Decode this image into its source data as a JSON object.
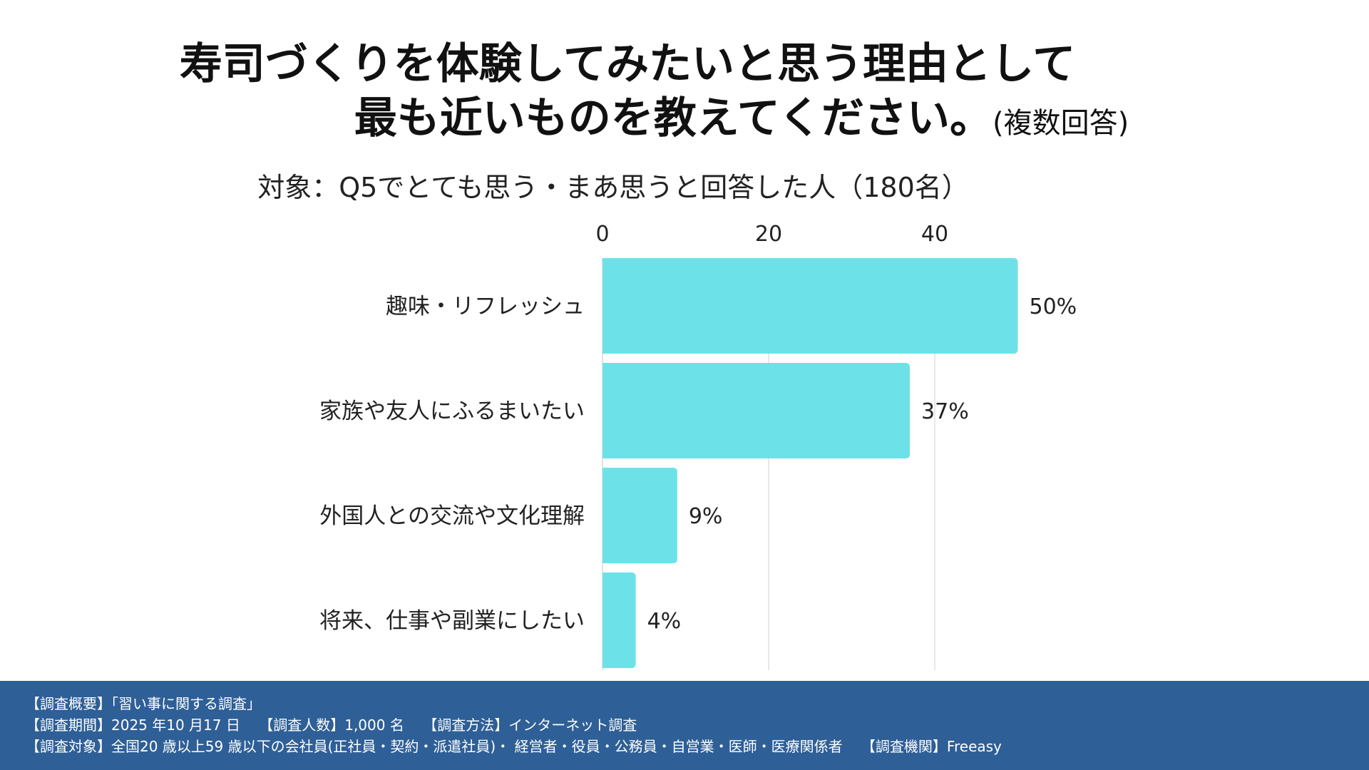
{
  "title": {
    "line1": "寿司づくりを体験してみたいと思う理由として",
    "line2": "最も近いものを教えてください。",
    "note": "(複数回答)"
  },
  "subtitle": "対象：Q5でとても思う・まあ思うと回答した人（180名）",
  "chart_data": {
    "type": "bar",
    "orientation": "horizontal",
    "title": "寿司づくりを体験してみたいと思う理由として最も近いものを教えてください。(複数回答)",
    "subtitle": "対象：Q5でとても思う・まあ思うと回答した人（180名）",
    "categories": [
      "趣味・リフレッシュ",
      "家族や友人にふるまいたい",
      "外国人との交流や文化理解",
      "将来、仕事や副業にしたい"
    ],
    "values": [
      50,
      37,
      9,
      4
    ],
    "value_labels": [
      "50%",
      "37%",
      "9%",
      "4%"
    ],
    "x_ticks": [
      0,
      20,
      40
    ],
    "xlim": [
      0,
      55
    ],
    "grid": true,
    "bar_color": "#6ce2e8",
    "grid_color": "#d9d9d9"
  },
  "footer": {
    "line1": "【調査概要】「習い事に関する調査」",
    "line2": "【調査期間】2025 年10 月17 日　 【調査人数】1,000 名　 【調査方法】インターネット調査",
    "line3": "【調査対象】全国20 歳以上59 歳以下の会社員(正社員・契約・派遣社員)・ 経営者・役員・公務員・自営業・医師・医療関係者　 【調査機関】Freeasy"
  },
  "colors": {
    "footer_bg": "#2e5f97",
    "bar": "#6ce2e8"
  }
}
